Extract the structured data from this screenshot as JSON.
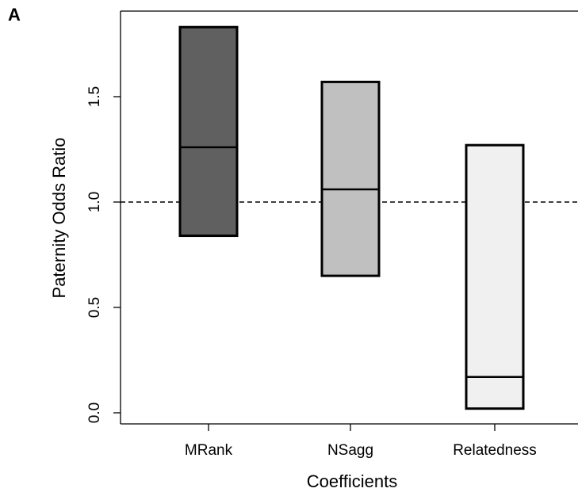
{
  "panel_label": "A",
  "chart_data": {
    "type": "box",
    "xlabel": "Coefficients",
    "ylabel": "Paternity Odds Ratio",
    "categories": [
      "MRank",
      "NSagg",
      "Relatedness"
    ],
    "boxes": [
      {
        "category": "MRank",
        "low": 0.84,
        "median": 1.26,
        "high": 1.83,
        "fill": "#606060"
      },
      {
        "category": "NSagg",
        "low": 0.65,
        "median": 1.06,
        "high": 1.57,
        "fill": "#c0c0c0"
      },
      {
        "category": "Relatedness",
        "low": 0.02,
        "median": 0.17,
        "high": 1.27,
        "fill": "#f0f0f0"
      }
    ],
    "reference_line": {
      "y": 1.0,
      "style": "dashed"
    },
    "yticks": [
      0.0,
      0.5,
      1.0,
      1.5
    ],
    "ytick_labels": [
      "0.0",
      "0.5",
      "1.0",
      "1.5"
    ],
    "ylim": [
      0.0,
      1.85
    ],
    "grid": false,
    "legend": "none"
  }
}
